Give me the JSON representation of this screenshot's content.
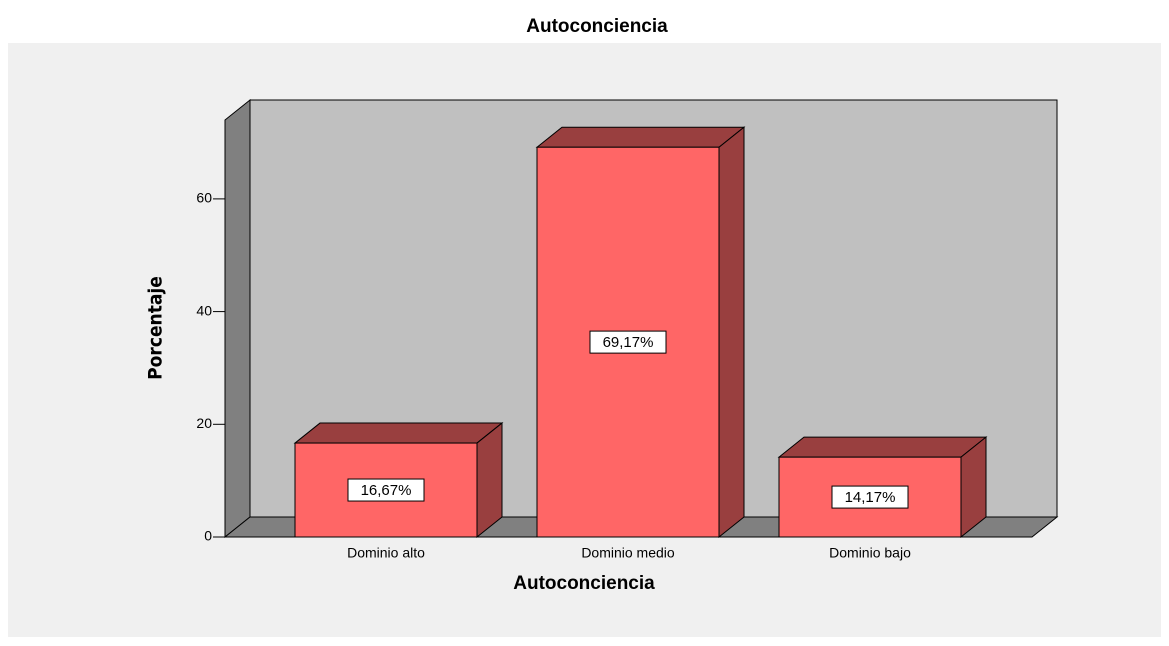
{
  "chart_data": {
    "type": "bar3d",
    "title": "Autoconciencia",
    "x_label": "Autoconciencia",
    "y_label": "Porcentaje",
    "categories": [
      "Dominio alto",
      "Dominio medio",
      "Dominio bajo"
    ],
    "values": [
      16.67,
      69.17,
      14.17
    ],
    "value_labels": [
      "16,67%",
      "69,17%",
      "14,17%"
    ],
    "color": "#ff6666",
    "ylim": [
      0,
      74
    ],
    "yticks": [
      0,
      20,
      40,
      60
    ]
  }
}
